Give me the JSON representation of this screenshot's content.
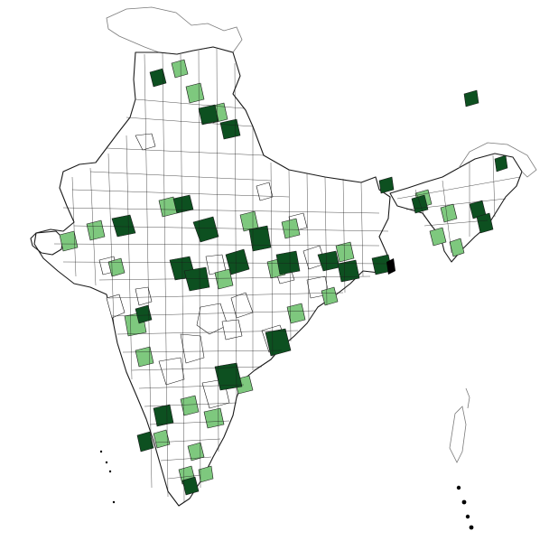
{
  "map": {
    "region": "India",
    "unit": "district",
    "colors": {
      "none": "#ffffff",
      "low": "#e0f7b0",
      "medium": "#7ec87e",
      "high": "#0d5020",
      "border": "#1a1a1a",
      "disputed_border": "#7a7a7a"
    },
    "legend_shown": false
  }
}
